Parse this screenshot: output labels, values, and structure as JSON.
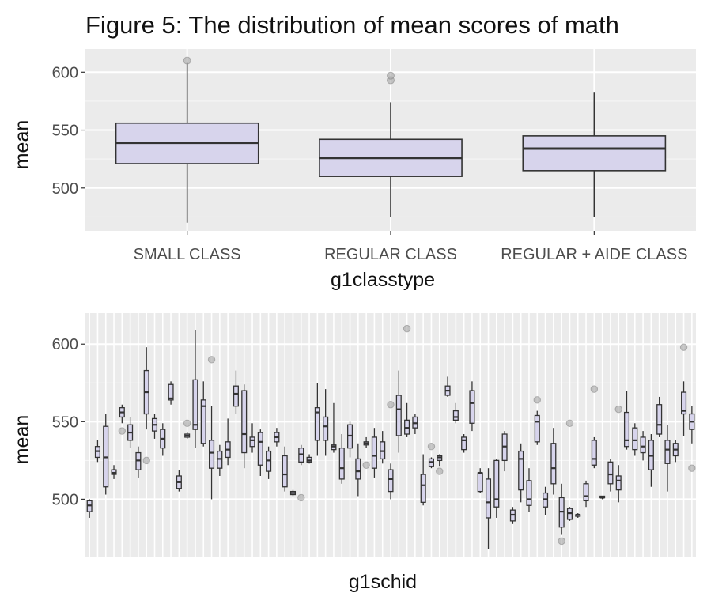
{
  "chart_data": [
    {
      "type": "box",
      "title": "Figure 5: The distribution of mean scores of math",
      "xlabel": "g1classtype",
      "ylabel": "mean",
      "ylim": [
        463,
        620
      ],
      "yticks": [
        500,
        550,
        600
      ],
      "categories": [
        "SMALL CLASS",
        "REGULAR CLASS",
        "REGULAR + AIDE CLASS"
      ],
      "boxes": [
        {
          "min": 470,
          "q1": 521,
          "median": 539,
          "q3": 556,
          "max": 608,
          "outliers": [
            610
          ]
        },
        {
          "min": 475,
          "q1": 510,
          "median": 526,
          "q3": 542,
          "max": 574,
          "outliers": [
            593,
            597
          ]
        },
        {
          "min": 475,
          "q1": 515,
          "median": 534,
          "q3": 545,
          "max": 583,
          "outliers": []
        }
      ],
      "fill": "#d7d4ec",
      "grid": true
    },
    {
      "type": "box",
      "title": "",
      "xlabel": "g1schid",
      "ylabel": "mean",
      "ylim": [
        463,
        620
      ],
      "yticks": [
        500,
        550,
        600
      ],
      "fill": "#d7d4ec",
      "grid": true,
      "boxes": [
        {
          "min": 488,
          "q1": 492,
          "median": 496,
          "q3": 499,
          "max": 500,
          "outliers": []
        },
        {
          "min": 524,
          "q1": 527,
          "median": 531,
          "q3": 534,
          "max": 538,
          "outliers": []
        },
        {
          "min": 503,
          "q1": 508,
          "median": 527,
          "q3": 547,
          "max": 555,
          "outliers": []
        },
        {
          "min": 513,
          "q1": 516,
          "median": 517,
          "q3": 519,
          "max": 522,
          "outliers": []
        },
        {
          "min": 549,
          "q1": 553,
          "median": 556,
          "q3": 559,
          "max": 561,
          "outliers": [
            544
          ]
        },
        {
          "min": 533,
          "q1": 538,
          "median": 543,
          "q3": 548,
          "max": 553,
          "outliers": []
        },
        {
          "min": 514,
          "q1": 519,
          "median": 525,
          "q3": 530,
          "max": 534,
          "outliers": []
        },
        {
          "min": 545,
          "q1": 555,
          "median": 569,
          "q3": 583,
          "max": 598,
          "outliers": [
            525
          ]
        },
        {
          "min": 539,
          "q1": 544,
          "median": 548,
          "q3": 552,
          "max": 555,
          "outliers": []
        },
        {
          "min": 528,
          "q1": 533,
          "median": 539,
          "q3": 545,
          "max": 549,
          "outliers": []
        },
        {
          "min": 561,
          "q1": 564,
          "median": 565,
          "q3": 574,
          "max": 576,
          "outliers": []
        },
        {
          "min": 505,
          "q1": 507,
          "median": 511,
          "q3": 515,
          "max": 519,
          "outliers": []
        },
        {
          "min": 539,
          "q1": 540,
          "median": 541,
          "q3": 542,
          "max": 543,
          "outliers": [
            549
          ]
        },
        {
          "min": 533,
          "q1": 545,
          "median": 548,
          "q3": 577,
          "max": 609,
          "outliers": []
        },
        {
          "min": 534,
          "q1": 536,
          "median": 560,
          "q3": 564,
          "max": 576,
          "outliers": []
        },
        {
          "min": 500,
          "q1": 520,
          "median": 530,
          "q3": 538,
          "max": 560,
          "outliers": [
            590
          ]
        },
        {
          "min": 515,
          "q1": 520,
          "median": 526,
          "q3": 531,
          "max": 535,
          "outliers": []
        },
        {
          "min": 522,
          "q1": 527,
          "median": 532,
          "q3": 537,
          "max": 552,
          "outliers": []
        },
        {
          "min": 555,
          "q1": 560,
          "median": 568,
          "q3": 573,
          "max": 583,
          "outliers": []
        },
        {
          "min": 520,
          "q1": 530,
          "median": 542,
          "q3": 570,
          "max": 574,
          "outliers": []
        },
        {
          "min": 530,
          "q1": 534,
          "median": 538,
          "q3": 540,
          "max": 549,
          "outliers": []
        },
        {
          "min": 515,
          "q1": 522,
          "median": 537,
          "q3": 543,
          "max": 545,
          "outliers": []
        },
        {
          "min": 513,
          "q1": 518,
          "median": 525,
          "q3": 531,
          "max": 534,
          "outliers": []
        },
        {
          "min": 534,
          "q1": 537,
          "median": 540,
          "q3": 543,
          "max": 546,
          "outliers": []
        },
        {
          "min": 505,
          "q1": 508,
          "median": 516,
          "q3": 528,
          "max": 534,
          "outliers": []
        },
        {
          "min": 502,
          "q1": 503,
          "median": 504,
          "q3": 505,
          "max": 506,
          "outliers": []
        },
        {
          "min": 522,
          "q1": 524,
          "median": 529,
          "q3": 533,
          "max": 535,
          "outliers": [
            501
          ]
        },
        {
          "min": 523,
          "q1": 524,
          "median": 525,
          "q3": 527,
          "max": 529,
          "outliers": []
        },
        {
          "min": 528,
          "q1": 538,
          "median": 556,
          "q3": 559,
          "max": 575,
          "outliers": []
        },
        {
          "min": 528,
          "q1": 538,
          "median": 547,
          "q3": 553,
          "max": 571,
          "outliers": []
        },
        {
          "min": 530,
          "q1": 532,
          "median": 534,
          "q3": 535,
          "max": 562,
          "outliers": []
        },
        {
          "min": 510,
          "q1": 513,
          "median": 520,
          "q3": 533,
          "max": 542,
          "outliers": []
        },
        {
          "min": 527,
          "q1": 533,
          "median": 541,
          "q3": 548,
          "max": 550,
          "outliers": []
        },
        {
          "min": 502,
          "q1": 513,
          "median": 518,
          "q3": 526,
          "max": 536,
          "outliers": []
        },
        {
          "min": 533,
          "q1": 535,
          "median": 536,
          "q3": 537,
          "max": 540,
          "outliers": [
            522
          ]
        },
        {
          "min": 514,
          "q1": 520,
          "median": 528,
          "q3": 540,
          "max": 546,
          "outliers": []
        },
        {
          "min": 523,
          "q1": 526,
          "median": 531,
          "q3": 537,
          "max": 544,
          "outliers": []
        },
        {
          "min": 500,
          "q1": 505,
          "median": 513,
          "q3": 519,
          "max": 523,
          "outliers": [
            561
          ]
        },
        {
          "min": 530,
          "q1": 541,
          "median": 558,
          "q3": 567,
          "max": 583,
          "outliers": []
        },
        {
          "min": 540,
          "q1": 542,
          "median": 546,
          "q3": 551,
          "max": 562,
          "outliers": [
            610
          ]
        },
        {
          "min": 542,
          "q1": 546,
          "median": 549,
          "q3": 553,
          "max": 555,
          "outliers": []
        },
        {
          "min": 496,
          "q1": 498,
          "median": 509,
          "q3": 516,
          "max": 529,
          "outliers": []
        },
        {
          "min": 520,
          "q1": 521,
          "median": 524,
          "q3": 526,
          "max": 527,
          "outliers": [
            534
          ]
        },
        {
          "min": 521,
          "q1": 525,
          "median": 527,
          "q3": 528,
          "max": 529,
          "outliers": [
            518
          ]
        },
        {
          "min": 566,
          "q1": 567,
          "median": 570,
          "q3": 573,
          "max": 579,
          "outliers": []
        },
        {
          "min": 549,
          "q1": 551,
          "median": 553,
          "q3": 557,
          "max": 562,
          "outliers": []
        },
        {
          "min": 530,
          "q1": 532,
          "median": 538,
          "q3": 540,
          "max": 542,
          "outliers": []
        },
        {
          "min": 544,
          "q1": 549,
          "median": 562,
          "q3": 570,
          "max": 576,
          "outliers": []
        },
        {
          "min": 504,
          "q1": 505,
          "median": 517,
          "q3": 517,
          "max": 520,
          "outliers": []
        },
        {
          "min": 468,
          "q1": 488,
          "median": 498,
          "q3": 513,
          "max": 520,
          "outliers": []
        },
        {
          "min": 488,
          "q1": 495,
          "median": 500,
          "q3": 525,
          "max": 526,
          "outliers": []
        },
        {
          "min": 518,
          "q1": 525,
          "median": 534,
          "q3": 542,
          "max": 544,
          "outliers": []
        },
        {
          "min": 484,
          "q1": 486,
          "median": 490,
          "q3": 493,
          "max": 495,
          "outliers": []
        },
        {
          "min": 498,
          "q1": 506,
          "median": 526,
          "q3": 531,
          "max": 536,
          "outliers": []
        },
        {
          "min": 492,
          "q1": 496,
          "median": 500,
          "q3": 512,
          "max": 520,
          "outliers": []
        },
        {
          "min": 535,
          "q1": 537,
          "median": 550,
          "q3": 554,
          "max": 557,
          "outliers": [
            564
          ]
        },
        {
          "min": 490,
          "q1": 495,
          "median": 500,
          "q3": 504,
          "max": 508,
          "outliers": []
        },
        {
          "min": 503,
          "q1": 510,
          "median": 520,
          "q3": 536,
          "max": 546,
          "outliers": []
        },
        {
          "min": 477,
          "q1": 482,
          "median": 492,
          "q3": 501,
          "max": 510,
          "outliers": [
            473
          ]
        },
        {
          "min": 486,
          "q1": 487,
          "median": 491,
          "q3": 494,
          "max": 495,
          "outliers": [
            549
          ]
        },
        {
          "min": 488,
          "q1": 489,
          "median": 490,
          "q3": 490,
          "max": 491,
          "outliers": []
        },
        {
          "min": 495,
          "q1": 499,
          "median": 502,
          "q3": 510,
          "max": 512,
          "outliers": []
        },
        {
          "min": 520,
          "q1": 522,
          "median": 526,
          "q3": 538,
          "max": 540,
          "outliers": [
            571
          ]
        },
        {
          "min": 500,
          "q1": 501,
          "median": 501,
          "q3": 502,
          "max": 502,
          "outliers": []
        },
        {
          "min": 505,
          "q1": 510,
          "median": 516,
          "q3": 524,
          "max": 526,
          "outliers": []
        },
        {
          "min": 498,
          "q1": 506,
          "median": 512,
          "q3": 515,
          "max": 522,
          "outliers": [
            558
          ]
        },
        {
          "min": 532,
          "q1": 534,
          "median": 538,
          "q3": 556,
          "max": 570,
          "outliers": []
        },
        {
          "min": 528,
          "q1": 532,
          "median": 538,
          "q3": 546,
          "max": 549,
          "outliers": []
        },
        {
          "min": 525,
          "q1": 530,
          "median": 534,
          "q3": 540,
          "max": 544,
          "outliers": []
        },
        {
          "min": 508,
          "q1": 519,
          "median": 528,
          "q3": 538,
          "max": 542,
          "outliers": []
        },
        {
          "min": 540,
          "q1": 542,
          "median": 548,
          "q3": 561,
          "max": 566,
          "outliers": []
        },
        {
          "min": 505,
          "q1": 523,
          "median": 532,
          "q3": 538,
          "max": 548,
          "outliers": []
        },
        {
          "min": 524,
          "q1": 528,
          "median": 532,
          "q3": 536,
          "max": 538,
          "outliers": []
        },
        {
          "min": 541,
          "q1": 555,
          "median": 557,
          "q3": 569,
          "max": 576,
          "outliers": [
            598
          ]
        },
        {
          "min": 536,
          "q1": 545,
          "median": 550,
          "q3": 555,
          "max": 560,
          "outliers": [
            520
          ]
        }
      ]
    }
  ]
}
